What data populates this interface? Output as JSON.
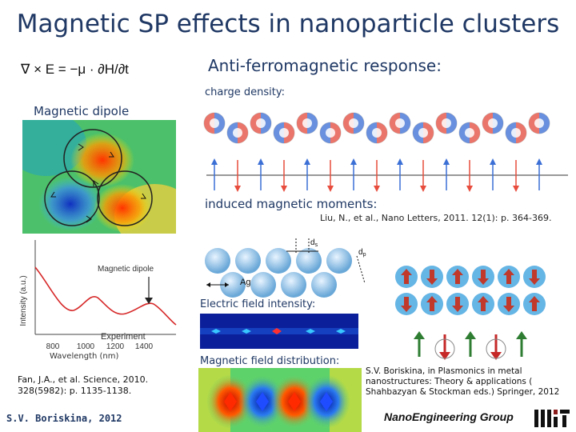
{
  "slide": {
    "title": "Magnetic SP effects in nanoparticle clusters",
    "equation": "∇ × E = −μ · ∂H/∂t",
    "af_heading": "Anti-ferromagnetic response:",
    "charge_label": "charge density:",
    "magnetic_dipole_label": "Magnetic dipole",
    "induced_label": "induced magnetic moments:",
    "liu_ref": "Liu, N., et al., Nano Letters, 2011. 12(1): p. 364-369.",
    "efield_label": "Electric field intensity:",
    "hfield_label": "Magnetic field distribution:",
    "fan_ref": "Fan, J.A., et al. Science, 2010. 328(5982): p. 1135-1138.",
    "boriskina_ref": "S.V. Boriskina, in Plasmonics in metal nanostructures: Theory & applications ( Shahbazyan & Stockman eds.) Springer, 2012",
    "signature": "S.V. Boriskina, 2012",
    "brand": "NanoEngineering Group"
  },
  "spectrum": {
    "annotation": "Magnetic dipole",
    "legend": "Experiment",
    "ylabel": "Intensity (a.u.)",
    "xlabel": "Wavelength (nm)",
    "xticks": [
      "800",
      "1000",
      "1200",
      "1400"
    ]
  },
  "diagram": {
    "particle_label": "Ag",
    "gap_label": "d",
    "gap_sub": "s",
    "diameter_label": "d",
    "diameter_sub": "p"
  },
  "colors": {
    "title": "#1f3864",
    "positive_charge": "#e74c3c",
    "negative_charge": "#3b6fd6",
    "arrow_up": "#2e7d32",
    "arrow_down": "#c62828",
    "dipole_circle": "#c0392b"
  }
}
